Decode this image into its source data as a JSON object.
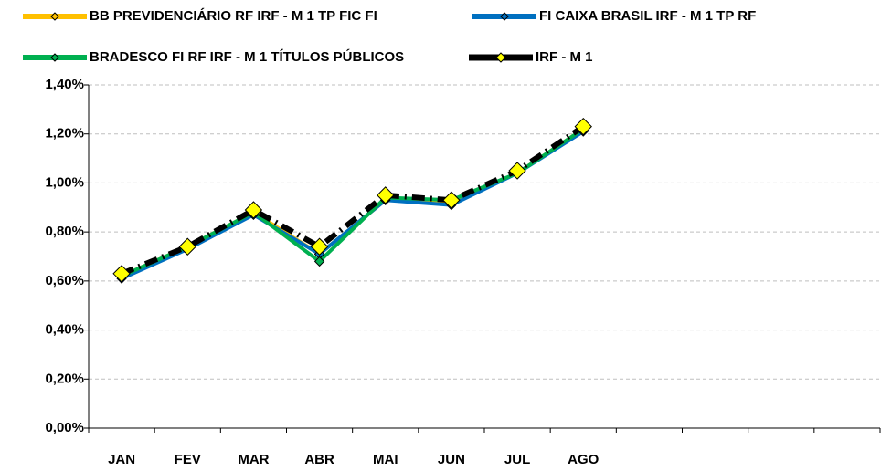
{
  "chart_data": {
    "type": "line",
    "categories": [
      "JAN",
      "FEV",
      "MAR",
      "ABR",
      "MAI",
      "JUN",
      "JUL",
      "AGO",
      null,
      null,
      null,
      null
    ],
    "series": [
      {
        "name": "BB PREVIDENCIÁRIO RF IRF - M 1 TP FIC FI",
        "color": "#ffc000",
        "values": [
          0.62,
          0.74,
          0.88,
          0.71,
          0.93,
          0.92,
          1.04,
          1.22,
          null,
          null,
          null,
          null
        ]
      },
      {
        "name": "FI CAIXA BRASIL IRF - M 1 TP RF",
        "color": "#0070c0",
        "values": [
          0.61,
          0.73,
          0.87,
          0.71,
          0.93,
          0.91,
          1.04,
          1.21,
          null,
          null,
          null,
          null
        ]
      },
      {
        "name": "BRADESCO FI RF IRF - M 1 TÍTULOS PÚBLICOS",
        "color": "#00b050",
        "values": [
          0.62,
          0.74,
          0.88,
          0.68,
          0.94,
          0.93,
          1.04,
          1.22,
          null,
          null,
          null,
          null
        ]
      },
      {
        "name": "IRF - M 1",
        "color": "#000000",
        "values": [
          0.63,
          0.74,
          0.89,
          0.74,
          0.95,
          0.93,
          1.05,
          1.23,
          null,
          null,
          null,
          null
        ]
      }
    ],
    "ylim": [
      0,
      1.4
    ],
    "yticks": [
      {
        "value": 0,
        "label": "0,00%"
      },
      {
        "value": 0.2,
        "label": "0,20%"
      },
      {
        "value": 0.4,
        "label": "0,40%"
      },
      {
        "value": 0.6,
        "label": "0,60%"
      },
      {
        "value": 0.8,
        "label": "0,80%"
      },
      {
        "value": 1.0,
        "label": "1,00%"
      },
      {
        "value": 1.2,
        "label": "1,20%"
      },
      {
        "value": 1.4,
        "label": "1,40%"
      }
    ],
    "grid": true,
    "legend": "top"
  }
}
